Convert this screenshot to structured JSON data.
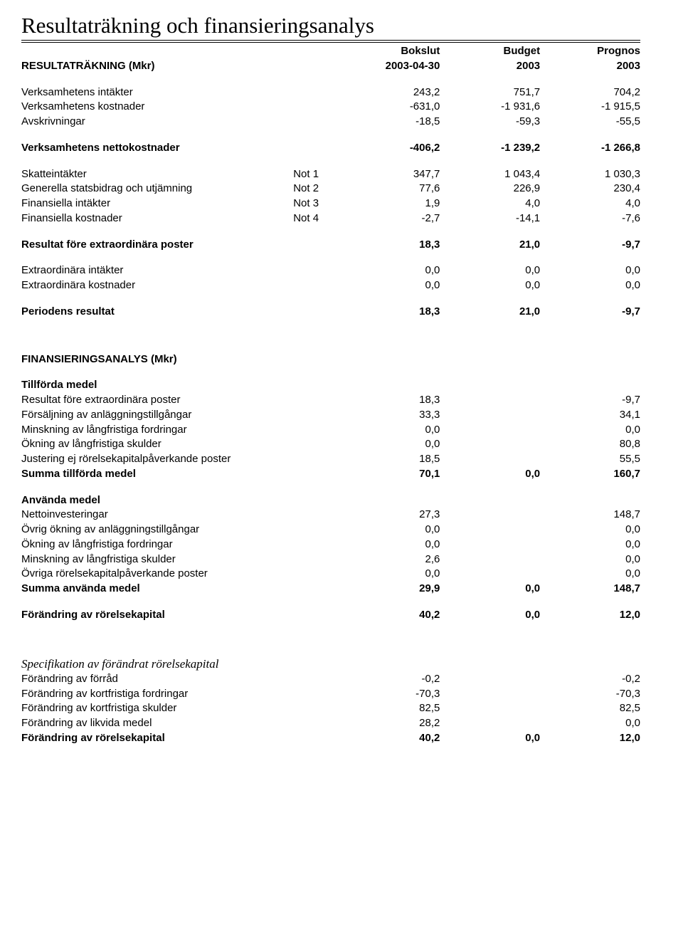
{
  "title": "Resultaträkning och finansieringsanalys",
  "header": {
    "col0": "RESULTATRÄKNING (Mkr)",
    "c1a": "Bokslut",
    "c1b": "2003-04-30",
    "c2a": "Budget",
    "c2b": "2003",
    "c3a": "Prognos",
    "c3b": "2003"
  },
  "r1": {
    "a": {
      "label": "Verksamhetens intäkter",
      "v1": "243,2",
      "v2": "751,7",
      "v3": "704,2"
    },
    "b": {
      "label": "Verksamhetens kostnader",
      "v1": "-631,0",
      "v2": "-1 931,6",
      "v3": "-1 915,5"
    },
    "c": {
      "label": "Avskrivningar",
      "v1": "-18,5",
      "v2": "-59,3",
      "v3": "-55,5"
    },
    "d": {
      "label": "Verksamhetens nettokostnader",
      "v1": "-406,2",
      "v2": "-1 239,2",
      "v3": "-1 266,8"
    },
    "e": {
      "label": "Skatteintäkter",
      "note": "Not 1",
      "v1": "347,7",
      "v2": "1 043,4",
      "v3": "1 030,3"
    },
    "f": {
      "label": "Generella statsbidrag och utjämning",
      "note": "Not 2",
      "v1": "77,6",
      "v2": "226,9",
      "v3": "230,4"
    },
    "g": {
      "label": "Finansiella intäkter",
      "note": "Not 3",
      "v1": "1,9",
      "v2": "4,0",
      "v3": "4,0"
    },
    "h": {
      "label": "Finansiella kostnader",
      "note": "Not 4",
      "v1": "-2,7",
      "v2": "-14,1",
      "v3": "-7,6"
    },
    "i": {
      "label": "Resultat före extraordinära poster",
      "v1": "18,3",
      "v2": "21,0",
      "v3": "-9,7"
    },
    "j": {
      "label": "Extraordinära intäkter",
      "v1": "0,0",
      "v2": "0,0",
      "v3": "0,0"
    },
    "k": {
      "label": "Extraordinära kostnader",
      "v1": "0,0",
      "v2": "0,0",
      "v3": "0,0"
    },
    "l": {
      "label": "Periodens resultat",
      "v1": "18,3",
      "v2": "21,0",
      "v3": "-9,7"
    }
  },
  "fin_title": "FINANSIERINGSANALYS (Mkr)",
  "r2": {
    "t1": "Tillförda medel",
    "a": {
      "label": "Resultat före extraordinära poster",
      "v1": "18,3",
      "v3": "-9,7"
    },
    "b": {
      "label": "Försäljning av anläggningstillgångar",
      "v1": "33,3",
      "v3": "34,1"
    },
    "c": {
      "label": "Minskning av långfristiga fordringar",
      "v1": "0,0",
      "v3": "0,0"
    },
    "d": {
      "label": "Ökning av långfristiga skulder",
      "v1": "0,0",
      "v3": "80,8"
    },
    "e": {
      "label": "Justering ej rörelsekapitalpåverkande poster",
      "v1": "18,5",
      "v3": "55,5"
    },
    "f": {
      "label": "Summa tillförda medel",
      "v1": "70,1",
      "v2": "0,0",
      "v3": "160,7"
    },
    "t2": "Använda medel",
    "g": {
      "label": "Nettoinvesteringar",
      "v1": "27,3",
      "v3": "148,7"
    },
    "h": {
      "label": "Övrig ökning av anläggningstillgångar",
      "v1": "0,0",
      "v3": "0,0"
    },
    "i": {
      "label": "Ökning av långfristiga fordringar",
      "v1": "0,0",
      "v3": "0,0"
    },
    "j": {
      "label": "Minskning av långfristiga skulder",
      "v1": "2,6",
      "v3": "0,0"
    },
    "k": {
      "label": "Övriga rörelsekapitalpåverkande poster",
      "v1": "0,0",
      "v3": "0,0"
    },
    "l": {
      "label": "Summa använda medel",
      "v1": "29,9",
      "v2": "0,0",
      "v3": "148,7"
    },
    "m": {
      "label": "Förändring av rörelsekapital",
      "v1": "40,2",
      "v2": "0,0",
      "v3": "12,0"
    }
  },
  "r3": {
    "title": "Specifikation av förändrat rörelsekapital",
    "a": {
      "label": "Förändring av förråd",
      "v1": "-0,2",
      "v3": "-0,2"
    },
    "b": {
      "label": "Förändring av kortfristiga fordringar",
      "v1": "-70,3",
      "v3": "-70,3"
    },
    "c": {
      "label": "Förändring av kortfristiga skulder",
      "v1": "82,5",
      "v3": "82,5"
    },
    "d": {
      "label": "Förändring av likvida medel",
      "v1": "28,2",
      "v3": "0,0"
    },
    "e": {
      "label": "Förändring av rörelsekapital",
      "v1": "40,2",
      "v2": "0,0",
      "v3": "12,0"
    }
  }
}
